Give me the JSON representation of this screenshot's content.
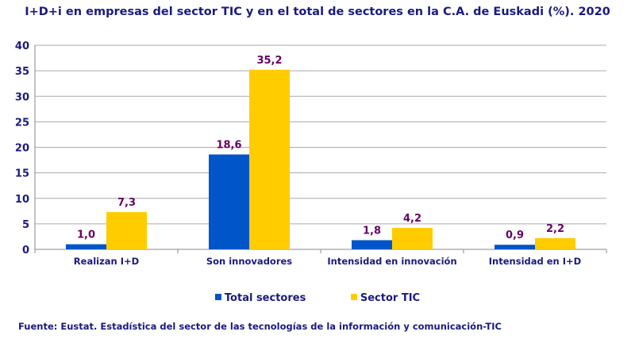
{
  "chart_data": {
    "type": "bar",
    "title": "I+D+i en empresas del sector TIC y en el total de sectores en la C.A. de Euskadi (%). 2020",
    "categories": [
      "Realizan I+D",
      "Son innovadores",
      "Intensidad en innovación",
      "Intensidad en I+D"
    ],
    "series": [
      {
        "name": "Total sectores",
        "values": [
          1.0,
          18.6,
          1.8,
          0.9
        ],
        "labels": [
          "1,0",
          "18,6",
          "1,8",
          "0,9"
        ],
        "color": "#0055c8"
      },
      {
        "name": "Sector TIC",
        "values": [
          7.3,
          35.2,
          4.2,
          2.2
        ],
        "labels": [
          "7,3",
          "35,2",
          "4,2",
          "2,2"
        ],
        "color": "#ffcc00"
      }
    ],
    "ylim": [
      0,
      40
    ],
    "yticks": [
      0,
      5,
      10,
      15,
      20,
      25,
      30,
      35,
      40
    ],
    "xlabel": "",
    "ylabel": "",
    "grid": true,
    "legend": "bottom-center",
    "label_color": "#660066"
  },
  "source": "Fuente: Eustat. Estadística del sector de las tecnologías de la información y comunicación-TIC"
}
